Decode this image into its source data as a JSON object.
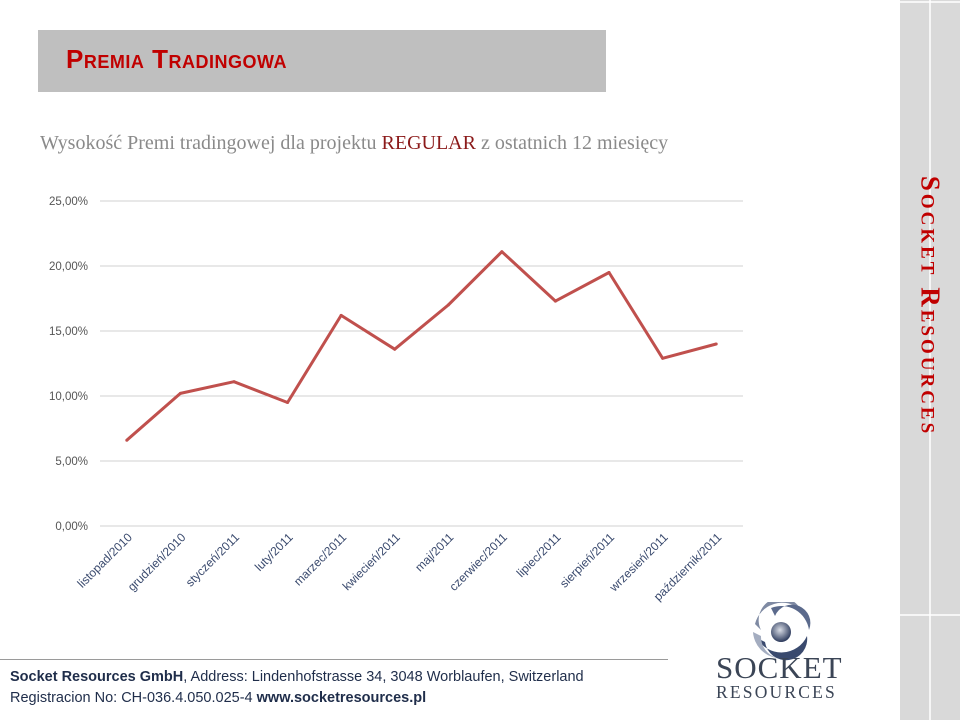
{
  "header": {
    "title": "Premia Tradingowa"
  },
  "subtitle": {
    "before": "Wysokość Premi tradingowej dla projektu ",
    "highlight": "REGULAR",
    "after": " z ostatnich 12 miesięcy"
  },
  "side_brand": "Socket Resources",
  "chart_data": {
    "type": "line",
    "categories": [
      "listopad/2010",
      "grudzień/2010",
      "styczeń/2011",
      "luty/2011",
      "marzec/2011",
      "kwiecień/2011",
      "maj/2011",
      "czerwiec/2011",
      "lipiec/2011",
      "sierpień/2011",
      "wrzesień/2011",
      "październik/2011"
    ],
    "series": [
      {
        "values": [
          6.6,
          10.2,
          11.1,
          9.5,
          16.2,
          13.6,
          17.0,
          21.1,
          17.3,
          19.5,
          12.9,
          14.0
        ]
      }
    ],
    "yticks": [
      "0,00%",
      "5,00%",
      "10,00%",
      "15,00%",
      "20,00%",
      "25,00%"
    ],
    "ylim": [
      0,
      25
    ],
    "grid": true,
    "color": "#c0504d"
  },
  "footer": {
    "company": "Socket Resources GmbH",
    "address": ", Address: Lindenhofstrasse 34, 3048 Worblaufen, Switzerland",
    "registration": "Registracion No: CH-036.4.050.025-4 ",
    "website": "www.socketresources.pl"
  },
  "logo": {
    "word1": "SOCKET",
    "word2": "RESOURCES"
  }
}
